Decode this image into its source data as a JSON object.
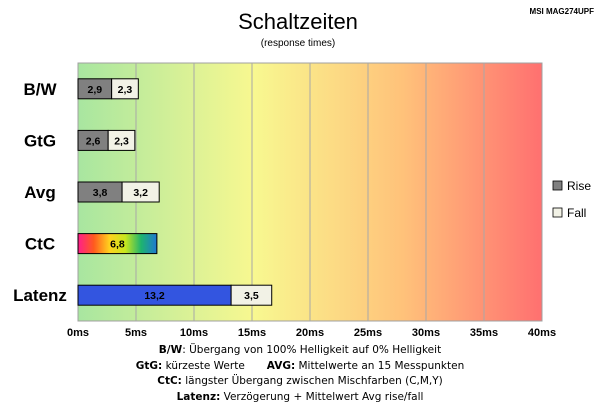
{
  "model": "MSI MAG274UPF",
  "notes": {
    "bw_key": "B/W",
    "bw_text": ":  Übergang von 100% Helligkeit auf 0% Helligkeit",
    "gtg_key": "GtG:",
    "gtg_text": " kürzeste  Werte",
    "avg_key": "AVG:",
    "avg_text": " Mittelwerte  an 15 Messpunkten",
    "ctc_key": "CtC:",
    "ctc_text": " längster Übergang  zwischen Mischfarben  (C,M,Y)",
    "lat_key": "Latenz:",
    "lat_text": " Verzögerung  + Mittelwert  Avg rise/fall"
  },
  "chart_data": {
    "type": "bar",
    "orientation": "horizontal",
    "stacked": true,
    "title": "Schaltzeiten",
    "subtitle": "(response times)",
    "categories": [
      "B/W",
      "GtG",
      "Avg",
      "CtC",
      "Latenz"
    ],
    "category_data": [
      {
        "label": "B/W",
        "segments": [
          {
            "series": "Rise",
            "value": 2.9,
            "label": "2,9"
          },
          {
            "series": "Fall",
            "value": 2.3,
            "label": "2,3"
          }
        ]
      },
      {
        "label": "GtG",
        "segments": [
          {
            "series": "Rise",
            "value": 2.6,
            "label": "2,6"
          },
          {
            "series": "Fall",
            "value": 2.3,
            "label": "2,3"
          }
        ]
      },
      {
        "label": "Avg",
        "segments": [
          {
            "series": "Rise",
            "value": 3.8,
            "label": "3,8"
          },
          {
            "series": "Fall",
            "value": 3.2,
            "label": "3,2"
          }
        ]
      },
      {
        "label": "CtC",
        "segments": [
          {
            "series": "CtC",
            "value": 6.8,
            "label": "6,8"
          }
        ]
      },
      {
        "label": "Latenz",
        "segments": [
          {
            "series": "Latenz",
            "value": 13.2,
            "label": "13,2"
          },
          {
            "series": "Fall",
            "value": 3.5,
            "label": "3,5"
          }
        ]
      }
    ],
    "series": [
      {
        "name": "Rise",
        "color": "#808080"
      },
      {
        "name": "Fall",
        "color": "#f2f2e6"
      }
    ],
    "segment_colors": {
      "CtC": "rainbow",
      "Latenz": "#3355e0"
    },
    "x_ticks": [
      "0ms",
      "5ms",
      "10ms",
      "15ms",
      "20ms",
      "25ms",
      "30ms",
      "35ms",
      "40ms"
    ],
    "xlim": [
      0,
      40
    ],
    "xtick_step": 5,
    "grid": true,
    "legend_position": "right",
    "background_gradient": [
      "#a8e6a0",
      "#f8f890",
      "#ff7070"
    ]
  }
}
